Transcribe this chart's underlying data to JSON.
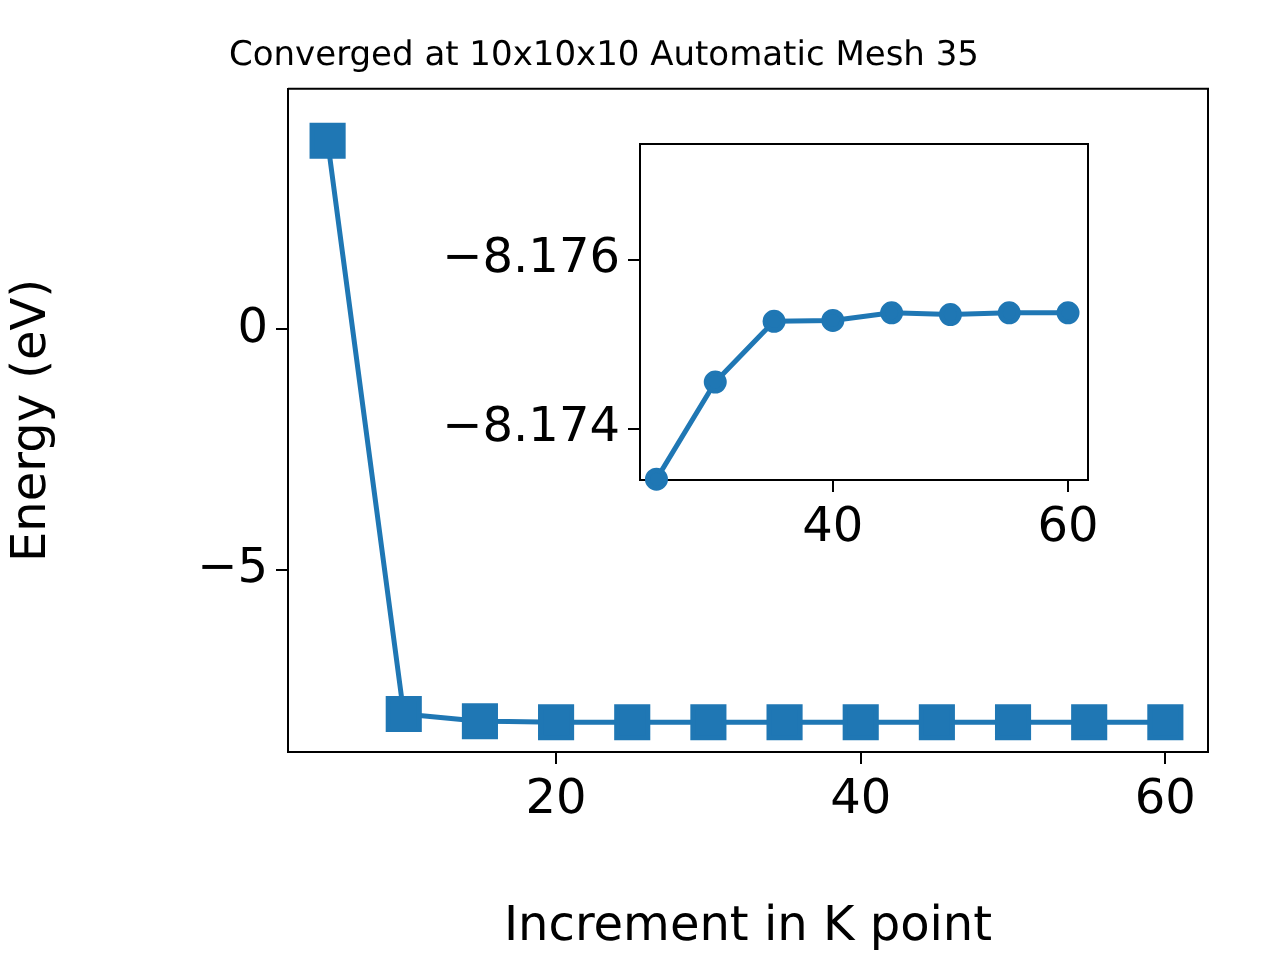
{
  "chart_data": [
    {
      "type": "line",
      "title": "Converged at 10x10x10 Automatic Mesh 35",
      "xlabel": "Increment in K point",
      "ylabel": "Energy (eV)",
      "x": [
        5,
        10,
        15,
        20,
        25,
        30,
        35,
        40,
        45,
        50,
        55,
        60
      ],
      "series": [
        {
          "color": "#1f77b4",
          "values": [
            3.92,
            -8.0,
            -8.15,
            -8.17,
            -8.17,
            -8.17,
            -8.17,
            -8.17,
            -8.17,
            -8.17,
            -8.17,
            -8.17
          ]
        }
      ],
      "xlim": [
        2.4,
        62.8
      ],
      "ylim": [
        -8.79,
        5.0
      ],
      "xticks": [
        20,
        40,
        60
      ],
      "yticks": [
        {
          "value": 0,
          "label": "0"
        },
        {
          "value": -5,
          "label": "−5"
        }
      ],
      "marker": "square",
      "grid": false,
      "legend": false
    },
    {
      "type": "line",
      "x": [
        25,
        30,
        35,
        40,
        45,
        50,
        55,
        60
      ],
      "series": [
        {
          "color": "#1f77b4",
          "values": [
            -8.1734,
            -8.17455,
            -8.17527,
            -8.17528,
            -8.17537,
            -8.17535,
            -8.17537,
            -8.17537
          ]
        }
      ],
      "xlim": [
        23.6,
        61.7
      ],
      "ylim": [
        -8.17339,
        -8.17737
      ],
      "xticks": [
        40,
        60
      ],
      "yticks": [
        {
          "value": -8.176,
          "label": "−8.176"
        },
        {
          "value": -8.174,
          "label": "−8.174"
        }
      ],
      "marker": "circle",
      "grid": false,
      "legend": false
    }
  ]
}
